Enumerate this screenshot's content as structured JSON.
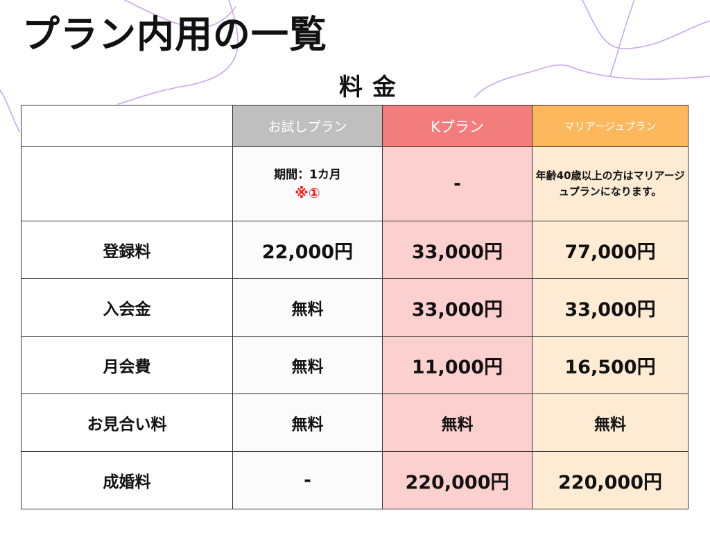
{
  "page": {
    "title": "プラン内用の一覧",
    "subtitle": "料金"
  },
  "table": {
    "headers": [
      "",
      "お試しプラン",
      "Kプラン",
      "マリアージュプラン"
    ],
    "note_row": {
      "label": "",
      "trial_line1": "期間：1カ月",
      "trial_line2": "※①",
      "k": "-",
      "marriage": "年齢40歳以上の方はマリアージュプランになります。"
    },
    "rows": [
      {
        "label": "登録料",
        "trial": "22,000円",
        "k": "33,000円",
        "marriage": "77,000円"
      },
      {
        "label": "入会金",
        "trial": "無料",
        "k": "33,000円",
        "marriage": "33,000円"
      },
      {
        "label": "月会費",
        "trial": "無料",
        "k": "11,000円",
        "marriage": "16,500円"
      },
      {
        "label": "お見合い料",
        "trial": "無料",
        "k": "無料",
        "marriage": "無料"
      },
      {
        "label": "成婚料",
        "trial": "-",
        "k": "220,000円",
        "marriage": "220,000円"
      }
    ]
  },
  "colors": {
    "trial_header": "#bfbfbf",
    "k_header": "#f37d7d",
    "marriage_header": "#fdb85d",
    "k_column": "#fdd0d0",
    "marriage_column": "#feebd4",
    "note_mark": "#ff1a1a",
    "decoration_lines": "#c9a6f0"
  }
}
